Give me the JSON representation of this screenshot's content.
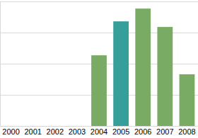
{
  "chart_data": {
    "type": "bar",
    "categories": [
      "2000",
      "2001",
      "2002",
      "2003",
      "2004",
      "2005",
      "2006",
      "2007",
      "2008"
    ],
    "values": [
      null,
      null,
      null,
      null,
      2.27,
      3.36,
      3.77,
      3.18,
      1.66
    ],
    "colors": [
      "#7aab64",
      "#7aab64",
      "#7aab64",
      "#7aab64",
      "#7aab64",
      "#369f9a",
      "#7aab64",
      "#7aab64",
      "#7aab64"
    ],
    "ylim": [
      0,
      4
    ],
    "yticks": [
      0,
      1,
      2,
      3,
      4
    ],
    "grid": true,
    "tick_labels": "x"
  }
}
